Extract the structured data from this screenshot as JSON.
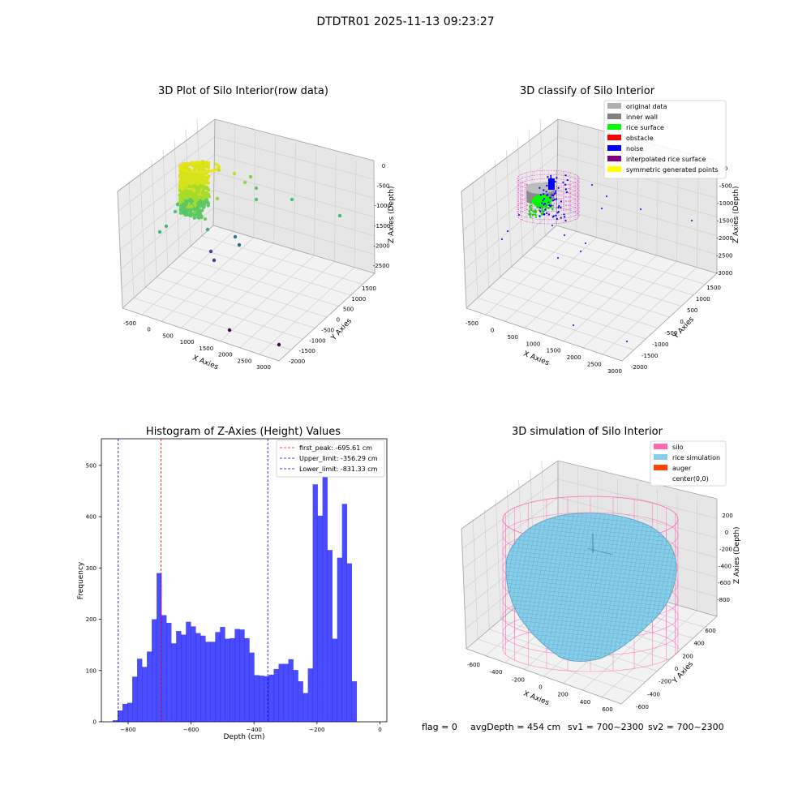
{
  "figure": {
    "suptitle": "DTDTR01 2025-11-13 09:23:27",
    "footer": {
      "flag": "flag = 0",
      "avg": "avgDepth = 454 cm",
      "sv1": "sv1 = 700~2300",
      "sv2": "sv2 = 700~2300"
    }
  },
  "panels": {
    "raw": {
      "title": "3D Plot of Silo Interior(row data)",
      "xlabel": "X Axies",
      "ylabel": "Y Axies",
      "zlabel": "Z Axies (Depth)",
      "xticks": [
        "-500",
        "0",
        "500",
        "1000",
        "1500",
        "2000",
        "2500",
        "3000"
      ],
      "yticks": [
        "1500",
        "1000",
        "500",
        "0",
        "-500",
        "-1000",
        "-1500",
        "-2000"
      ],
      "zticks": [
        "0",
        "-500",
        "-1000",
        "-1500",
        "-2000",
        "-2500"
      ]
    },
    "classify": {
      "title": "3D classify of Silo Interior",
      "xlabel": "X Axies",
      "ylabel": "Y Axies",
      "zlabel": "Z Axies (Depth)",
      "xticks": [
        "-500",
        "0",
        "500",
        "1000",
        "1500",
        "2000",
        "2500",
        "3000"
      ],
      "yticks": [
        "1500",
        "1000",
        "500",
        "0",
        "-500",
        "-1000",
        "-1500",
        "-2000"
      ],
      "zticks": [
        "0",
        "-500",
        "-1000",
        "-1500",
        "-2000",
        "-2500",
        "-3000"
      ],
      "legend": [
        {
          "label": "original data",
          "color": "#b0b0b0"
        },
        {
          "label": "inner wall",
          "color": "#808080"
        },
        {
          "label": "rice surface",
          "color": "#00ff00"
        },
        {
          "label": "obstacle",
          "color": "#ff0000"
        },
        {
          "label": "noise",
          "color": "#0000ff"
        },
        {
          "label": "interpolated rice surface",
          "color": "#800080"
        },
        {
          "label": "symmetric generated points",
          "color": "#ffff00"
        }
      ]
    },
    "simulation": {
      "title": "3D simulation of Silo Interior",
      "xlabel": "X Axies",
      "ylabel": "Y Axies",
      "zlabel": "Z Axies (Depth)",
      "xticks": [
        "-600",
        "-400",
        "-200",
        "0",
        "200",
        "400",
        "600"
      ],
      "yticks": [
        "600",
        "400",
        "200",
        "0",
        "-200",
        "-400",
        "-600"
      ],
      "zticks": [
        "200",
        "0",
        "-200",
        "-400",
        "-600",
        "-800"
      ],
      "legend": [
        {
          "label": "silo",
          "color": "#ff69b4"
        },
        {
          "label": "rice simulation",
          "color": "#87ceeb"
        },
        {
          "label": "auger",
          "color": "#ff4500"
        },
        {
          "label": "center(0,0)",
          "color": "none"
        }
      ]
    }
  },
  "chart_data": [
    {
      "type": "bar",
      "title": "Histogram of Z-Axies (Height) Values",
      "xlabel": "Depth (cm)",
      "ylabel": "Frequency",
      "xlim": [
        -885,
        22
      ],
      "ylim": [
        0,
        552
      ],
      "xticks": [
        -800,
        -600,
        -400,
        -200,
        0
      ],
      "yticks": [
        0,
        100,
        200,
        300,
        400,
        500
      ],
      "bar_color": "#0000ff",
      "bin_start": -849,
      "bin_width": 15.5,
      "values": [
        3,
        22,
        35,
        37,
        88,
        123,
        107,
        137,
        200,
        290,
        208,
        193,
        153,
        177,
        170,
        195,
        186,
        173,
        168,
        156,
        156,
        175,
        185,
        162,
        163,
        181,
        180,
        163,
        135,
        91,
        90,
        89,
        92,
        103,
        113,
        113,
        122,
        101,
        79,
        56,
        104,
        463,
        402,
        542,
        335,
        162,
        320,
        425,
        309,
        79
      ],
      "vlines": [
        {
          "label": "first_peak: -695.61 cm",
          "value": -695.61,
          "color": "#ff0000"
        },
        {
          "label": "Upper_limit: -356.29 cm",
          "value": -356.29,
          "color": "#0000cd"
        },
        {
          "label": "Lower_limit: -831.33 cm",
          "value": -831.33,
          "color": "#0000cd"
        }
      ],
      "legend_position": "upper-right"
    }
  ]
}
